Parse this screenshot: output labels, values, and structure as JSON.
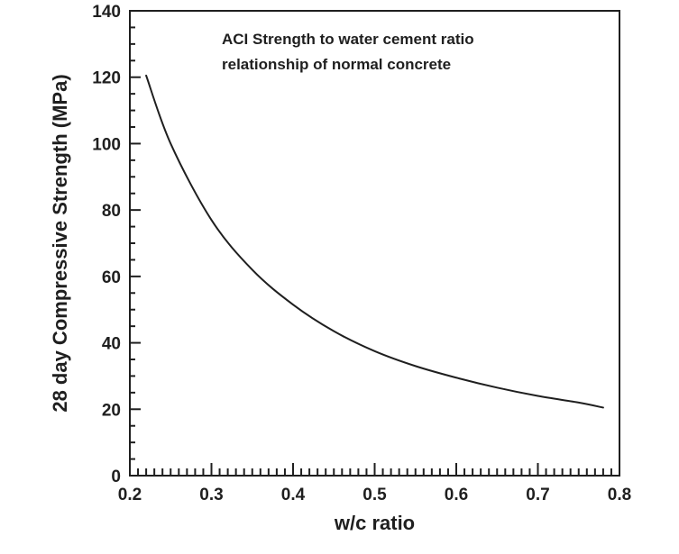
{
  "chart_data": {
    "type": "line",
    "title": "",
    "xlabel": "w/c ratio",
    "ylabel": "28 day Compressive Strength (MPa)",
    "xlim": [
      0.2,
      0.8
    ],
    "ylim": [
      0,
      140
    ],
    "x_ticks": [
      0.2,
      0.3,
      0.4,
      0.5,
      0.6,
      0.7,
      0.8
    ],
    "x_tick_labels": [
      "0.2",
      "0.3",
      "0.4",
      "0.5",
      "0.6",
      "0.7",
      "0.8"
    ],
    "y_ticks": [
      0,
      20,
      40,
      60,
      80,
      100,
      120,
      140
    ],
    "y_tick_labels": [
      "0",
      "20",
      "40",
      "60",
      "80",
      "100",
      "120",
      "140"
    ],
    "grid": false,
    "legend": "none",
    "annotations": [
      "ACI Strength to water cement ratio",
      "relationship of normal concrete"
    ],
    "series": [
      {
        "color": "#1f1f1f",
        "x": [
          0.22,
          0.25,
          0.3,
          0.35,
          0.4,
          0.45,
          0.5,
          0.55,
          0.6,
          0.65,
          0.7,
          0.75,
          0.78
        ],
        "y": [
          120.5,
          100,
          77,
          62,
          51.5,
          43.5,
          37.5,
          33,
          29.5,
          26.5,
          24,
          22,
          20.5
        ]
      }
    ]
  }
}
